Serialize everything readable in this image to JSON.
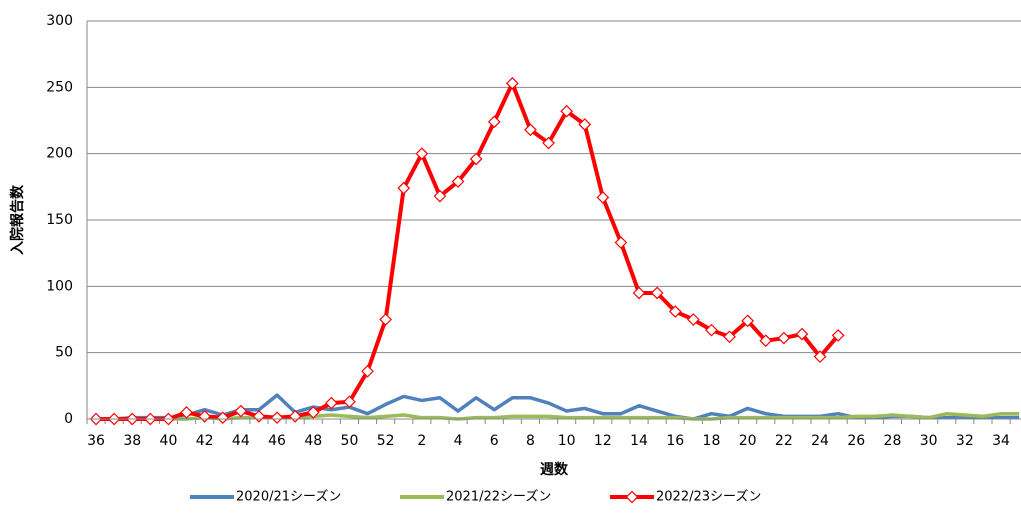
{
  "chart_data": {
    "type": "line",
    "x_label": "週数",
    "y_label": "入院報告数",
    "categories": [
      "36",
      null,
      "38",
      null,
      "40",
      null,
      "42",
      null,
      "44",
      null,
      "46",
      null,
      "48",
      null,
      "50",
      null,
      "52",
      null,
      "2",
      null,
      "4",
      null,
      "6",
      null,
      "8",
      null,
      "10",
      null,
      "12",
      null,
      "14",
      null,
      "16",
      null,
      "18",
      null,
      "20",
      null,
      "22",
      null,
      "24",
      null,
      "26",
      null,
      "28",
      null,
      "30",
      null,
      "32",
      null,
      "34",
      null
    ],
    "series": [
      {
        "name": "2020/21シーズン",
        "color": "#4f81bd",
        "marker": "none",
        "values": [
          0,
          0,
          1,
          1,
          1,
          3,
          7,
          3,
          7,
          7,
          18,
          5,
          9,
          7,
          9,
          4,
          11,
          17,
          14,
          16,
          6,
          16,
          7,
          16,
          16,
          12,
          6,
          8,
          4,
          4,
          10,
          6,
          2,
          0,
          4,
          2,
          8,
          4,
          2,
          2,
          2,
          4,
          1,
          1,
          2,
          2,
          1,
          1,
          1,
          1,
          1,
          1
        ]
      },
      {
        "name": "2021/22シーズン",
        "color": "#9bbb59",
        "marker": "none",
        "values": [
          0,
          0,
          0,
          0,
          0,
          0,
          1,
          0,
          1,
          1,
          1,
          1,
          2,
          3,
          2,
          1,
          2,
          3,
          1,
          1,
          0,
          1,
          1,
          2,
          2,
          2,
          1,
          1,
          1,
          1,
          1,
          1,
          1,
          0,
          0,
          1,
          1,
          1,
          1,
          1,
          1,
          1,
          2,
          2,
          3,
          2,
          1,
          4,
          3,
          2,
          4,
          4
        ]
      },
      {
        "name": "2022/23シーズン",
        "color": "#ff0000",
        "marker": "diamond",
        "values": [
          0,
          0,
          0,
          0,
          0,
          5,
          2,
          1,
          6,
          2,
          1,
          2,
          5,
          12,
          13,
          36,
          75,
          174,
          200,
          168,
          179,
          196,
          224,
          253,
          218,
          208,
          232,
          222,
          167,
          133,
          95,
          95,
          81,
          75,
          67,
          62,
          74,
          59,
          61,
          64,
          47,
          63,
          null,
          null,
          null,
          null,
          null,
          null,
          null,
          null,
          null,
          null
        ]
      }
    ],
    "ylim": [
      0,
      300
    ],
    "yticks": [
      0,
      50,
      100,
      150,
      200,
      250,
      300
    ],
    "grid": true,
    "legend": "bottom"
  }
}
